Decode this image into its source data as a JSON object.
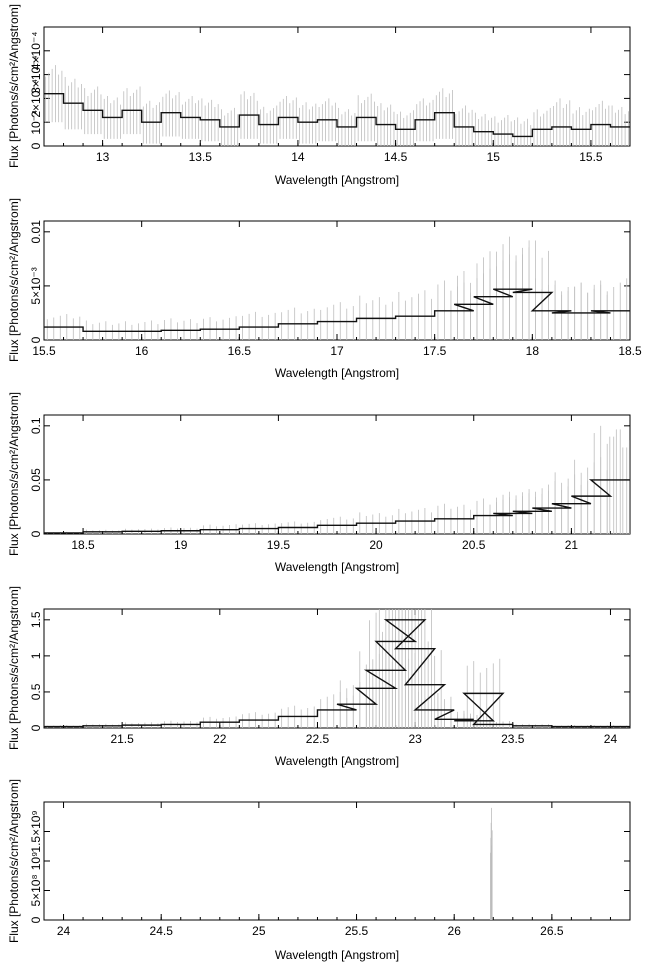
{
  "chart_data": [
    {
      "type": "line",
      "xlabel": "Wavelength [Angstrom]",
      "ylabel": "Flux [Photons/s/cm²/Angstrom]",
      "xlim": [
        12.7,
        15.7
      ],
      "ylim": [
        0,
        0.0005
      ],
      "x_ticks": [
        "13",
        "13.5",
        "14",
        "14.5",
        "15",
        "15.5"
      ],
      "y_ticks": [
        "0",
        "10⁻⁴",
        "2×10⁻⁴",
        "3×10⁻⁴",
        "4×10⁻⁴"
      ],
      "series": [
        {
          "x": [
            12.75,
            12.85,
            12.95,
            13.05,
            13.15,
            13.25,
            13.35,
            13.45,
            13.55,
            13.65,
            13.75,
            13.85,
            13.95,
            14.05,
            14.15,
            14.25,
            14.35,
            14.45,
            14.55,
            14.65,
            14.75,
            14.85,
            14.95,
            15.05,
            15.15,
            15.25,
            15.35,
            15.45,
            15.55,
            15.65
          ],
          "y": [
            0.00022,
            0.00018,
            0.00015,
            0.00012,
            0.00015,
            0.0001,
            0.00014,
            0.00012,
            0.00011,
            8e-05,
            0.00013,
            9e-05,
            0.00012,
            0.0001,
            0.00011,
            8e-05,
            0.00012,
            9e-05,
            7e-05,
            0.00011,
            0.00014,
            8e-05,
            6e-05,
            5e-05,
            4e-05,
            7e-05,
            8e-05,
            7e-05,
            9e-05,
            8e-05
          ],
          "err": [
            0.00012,
            0.00011,
            0.0001,
            9e-05,
            0.0001,
            9e-05,
            0.0001,
            9e-05,
            9e-05,
            8e-05,
            0.0001,
            8e-05,
            9e-05,
            9e-05,
            9e-05,
            8e-05,
            0.0001,
            9e-05,
            8e-05,
            9e-05,
            0.00011,
            9e-05,
            8e-05,
            8e-05,
            8e-05,
            9e-05,
            0.00012,
            0.0001,
            0.0001,
            9e-05
          ]
        }
      ]
    },
    {
      "type": "line",
      "xlabel": "Wavelength [Angstrom]",
      "ylabel": "Flux [Photons/s/cm²/Angstrom]",
      "xlim": [
        15.5,
        18.5
      ],
      "ylim": [
        0,
        0.011
      ],
      "x_ticks": [
        "15.5",
        "16",
        "16.5",
        "17",
        "17.5",
        "18",
        "18.5"
      ],
      "y_ticks": [
        "0",
        "5×10⁻³",
        "0.01"
      ],
      "series": [
        {
          "x": [
            15.6,
            15.8,
            16.0,
            16.2,
            16.4,
            16.6,
            16.8,
            17.0,
            17.2,
            17.4,
            17.6,
            17.7,
            17.8,
            17.9,
            18.0,
            18.1,
            18.2,
            18.3,
            18.4
          ],
          "y": [
            0.0012,
            0.0008,
            0.0008,
            0.0009,
            0.001,
            0.0012,
            0.0015,
            0.0017,
            0.002,
            0.0022,
            0.0027,
            0.0033,
            0.004,
            0.0047,
            0.0044,
            0.0027,
            0.0025,
            0.0025,
            0.0027
          ],
          "err": [
            0.0012,
            0.001,
            0.001,
            0.0011,
            0.0012,
            0.0014,
            0.0016,
            0.0018,
            0.0021,
            0.0024,
            0.0028,
            0.0033,
            0.0042,
            0.0052,
            0.0048,
            0.003,
            0.0028,
            0.0028,
            0.003
          ]
        }
      ]
    },
    {
      "type": "line",
      "xlabel": "Wavelength [Angstrom]",
      "ylabel": "Flux [Photons/s/cm²/Angstrom]",
      "xlim": [
        18.3,
        21.3
      ],
      "ylim": [
        0,
        0.11
      ],
      "x_ticks": [
        "18.5",
        "19",
        "19.5",
        "20",
        "20.5",
        "21"
      ],
      "y_ticks": [
        "0",
        "0.05",
        "0.1"
      ],
      "series": [
        {
          "x": [
            18.4,
            18.6,
            18.8,
            19.0,
            19.2,
            19.4,
            19.6,
            19.8,
            20.0,
            20.2,
            20.4,
            20.6,
            20.7,
            20.8,
            20.9,
            21.0,
            21.1,
            21.2,
            21.28
          ],
          "y": [
            0.001,
            0.002,
            0.0025,
            0.003,
            0.004,
            0.005,
            0.006,
            0.008,
            0.01,
            0.012,
            0.014,
            0.017,
            0.019,
            0.021,
            0.024,
            0.028,
            0.035,
            0.05,
            0.05
          ],
          "err": [
            0.001,
            0.002,
            0.0025,
            0.003,
            0.005,
            0.005,
            0.006,
            0.008,
            0.01,
            0.012,
            0.014,
            0.017,
            0.02,
            0.022,
            0.025,
            0.029,
            0.036,
            0.05,
            0.05
          ]
        }
      ]
    },
    {
      "type": "line",
      "xlabel": "Wavelength [Angstrom]",
      "ylabel": "Flux [Photons/s/cm²/Angstrom]",
      "xlim": [
        21.1,
        24.1
      ],
      "ylim": [
        0,
        1.65
      ],
      "x_ticks": [
        "21.5",
        "22",
        "22.5",
        "23",
        "23.5",
        "24"
      ],
      "y_ticks": [
        "0",
        "0.5",
        "1",
        "1.5"
      ],
      "series": [
        {
          "x": [
            21.2,
            21.4,
            21.6,
            21.8,
            22.0,
            22.2,
            22.4,
            22.6,
            22.7,
            22.8,
            22.85,
            22.9,
            22.95,
            23.0,
            23.05,
            23.1,
            23.2,
            23.3,
            23.35,
            23.4,
            23.6,
            23.8,
            24.0
          ],
          "y": [
            0.02,
            0.03,
            0.04,
            0.05,
            0.08,
            0.11,
            0.16,
            0.25,
            0.33,
            0.55,
            0.8,
            1.2,
            1.5,
            1.1,
            0.6,
            0.25,
            0.12,
            0.1,
            0.48,
            0.05,
            0.03,
            0.02,
            0.02
          ],
          "err": [
            0.02,
            0.03,
            0.04,
            0.05,
            0.08,
            0.11,
            0.16,
            0.25,
            0.33,
            0.55,
            0.8,
            1.2,
            1.52,
            1.1,
            0.6,
            0.25,
            0.12,
            0.1,
            0.48,
            0.05,
            0.03,
            0.02,
            0.02
          ]
        }
      ]
    },
    {
      "type": "line",
      "xlabel": "Wavelength [Angstrom]",
      "ylabel": "Flux [Photons/s/cm²/Angstrom]",
      "xlim": [
        23.9,
        26.9
      ],
      "ylim": [
        0,
        2000000000.0
      ],
      "x_ticks": [
        "24",
        "24.5",
        "25",
        "25.5",
        "26",
        "26.5"
      ],
      "y_ticks": [
        "0",
        "5×10⁸",
        "10⁹",
        "1.5×10⁹"
      ],
      "series": [
        {
          "x": [
            26.19
          ],
          "y": [
            0
          ],
          "err": [
            1900000000.0
          ]
        }
      ]
    }
  ]
}
